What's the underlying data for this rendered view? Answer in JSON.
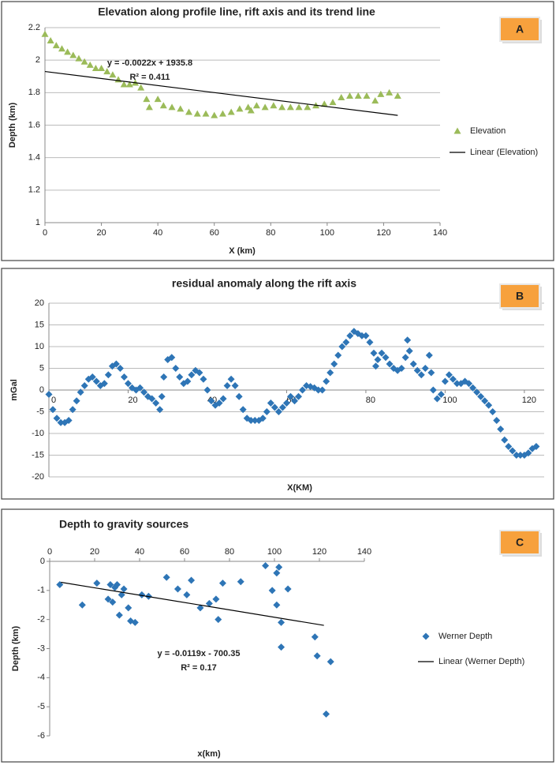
{
  "chart_data": [
    {
      "type": "scatter",
      "title": "Elevation along profile line, rift axis and its trend line",
      "panel_label": "A",
      "x_label": "X (km)",
      "y_label": "Depth (km)",
      "annotations": [
        "y = -0.0022x + 1935.8",
        "R² = 0.411"
      ],
      "xlim": [
        0,
        140
      ],
      "xticks": [
        0,
        20,
        40,
        60,
        80,
        100,
        120,
        140
      ],
      "ylim": [
        1,
        2.2
      ],
      "yticks": [
        1,
        1.2,
        1.4,
        1.6,
        1.8,
        2,
        2.2
      ],
      "grid": true,
      "x_axis_position": "bottom",
      "series": [
        {
          "name": "Elevation",
          "color": "#9bbb59",
          "marker": "triangle",
          "x": [
            0,
            2,
            4,
            6,
            8,
            10,
            12,
            14,
            16,
            18,
            20,
            22,
            24,
            26,
            28,
            30,
            32,
            34,
            36,
            37,
            40,
            42,
            45,
            48,
            51,
            54,
            57,
            60,
            63,
            66,
            69,
            72,
            73,
            75,
            78,
            81,
            84,
            87,
            90,
            93,
            96,
            99,
            102,
            105,
            108,
            111,
            114,
            117,
            119,
            122,
            125
          ],
          "values": [
            2.16,
            2.12,
            2.09,
            2.07,
            2.05,
            2.03,
            2.01,
            1.99,
            1.97,
            1.95,
            1.95,
            1.93,
            1.91,
            1.88,
            1.85,
            1.85,
            1.86,
            1.83,
            1.76,
            1.71,
            1.76,
            1.72,
            1.71,
            1.7,
            1.68,
            1.67,
            1.67,
            1.66,
            1.67,
            1.68,
            1.7,
            1.71,
            1.69,
            1.72,
            1.71,
            1.72,
            1.71,
            1.71,
            1.71,
            1.71,
            1.72,
            1.73,
            1.74,
            1.77,
            1.78,
            1.78,
            1.78,
            1.75,
            1.79,
            1.8,
            1.78
          ]
        },
        {
          "name": "Linear (Elevation)",
          "color": "#000000",
          "marker": "line",
          "x": [
            0,
            125
          ],
          "values": [
            1.93,
            1.66
          ]
        }
      ]
    },
    {
      "type": "scatter",
      "title": "residual anomaly  along the rift axis",
      "panel_label": "B",
      "x_label": "X(KM)",
      "y_label": "mGal",
      "xlim": [
        0,
        125
      ],
      "xticks": [
        0,
        20,
        40,
        60,
        80,
        100,
        120
      ],
      "ylim": [
        -20,
        20
      ],
      "yticks": [
        -20,
        -15,
        -10,
        -5,
        0,
        5,
        10,
        15,
        20
      ],
      "grid": true,
      "x_axis_position": "zero",
      "series": [
        {
          "name": null,
          "color": "#2e75b6",
          "marker": "diamond",
          "x": [
            0,
            1,
            2,
            3,
            4,
            5,
            6,
            7,
            8,
            9,
            10,
            11,
            12,
            13,
            14,
            15,
            16,
            17,
            18,
            19,
            20,
            21,
            22,
            23,
            24,
            25,
            26,
            27,
            28,
            28.5,
            29,
            30,
            31,
            32,
            33,
            34,
            35,
            36,
            37,
            38,
            39,
            40,
            41,
            42,
            43,
            44,
            45,
            46,
            47,
            48,
            49,
            50,
            51,
            52,
            53,
            54,
            55,
            56,
            57,
            58,
            59,
            60,
            61,
            62,
            63,
            64,
            65,
            66,
            67,
            68,
            69,
            70,
            71,
            72,
            73,
            74,
            75,
            76,
            77,
            78,
            79,
            80,
            81,
            82,
            82.5,
            83,
            84,
            85,
            86,
            87,
            88,
            89,
            90,
            90.5,
            91,
            92,
            93,
            94,
            95,
            96,
            96.5,
            97,
            98,
            99,
            100,
            101,
            102,
            103,
            104,
            105,
            106,
            107,
            108,
            109,
            110,
            111,
            112,
            113,
            114,
            115,
            116,
            117,
            118,
            119,
            120,
            121,
            122,
            123
          ],
          "values": [
            -1,
            -4.5,
            -6.5,
            -7.5,
            -7.5,
            -7,
            -4.5,
            -2.5,
            -0.5,
            1,
            2.5,
            3,
            2,
            1,
            1.5,
            3.5,
            5.5,
            6,
            5,
            3,
            1.5,
            0.5,
            0,
            0.5,
            -0.5,
            -1.5,
            -2,
            -3,
            -4.5,
            -1.5,
            3,
            7,
            7.5,
            5,
            3,
            1.5,
            2,
            3.5,
            4.5,
            4,
            2.5,
            0,
            -2.5,
            -3.5,
            -3,
            -2,
            1,
            2.5,
            1,
            -1.5,
            -4.5,
            -6.5,
            -7,
            -7,
            -7,
            -6.5,
            -5,
            -3,
            -4,
            -5,
            -4,
            -3,
            -1.5,
            -2.5,
            -1.5,
            0,
            1,
            0.8,
            0.5,
            0,
            0,
            2,
            4,
            6,
            8,
            10,
            11,
            12.5,
            13.5,
            13,
            12.5,
            12.5,
            11,
            8.5,
            5.5,
            7,
            8.5,
            7.5,
            6,
            5,
            4.5,
            5,
            7.5,
            11.5,
            9,
            6,
            4.5,
            3.5,
            5,
            8,
            4,
            0,
            -2,
            -1,
            2,
            3.5,
            2.5,
            1.5,
            1.5,
            2,
            1.5,
            0.5,
            -0.5,
            -1.5,
            -2.5,
            -3.5,
            -5,
            -7,
            -9,
            -11.5,
            -13,
            -14,
            -15,
            -15,
            -15,
            -14.5,
            -13.5,
            -13
          ]
        }
      ]
    },
    {
      "type": "scatter",
      "title": "Depth to gravity sources",
      "panel_label": "C",
      "x_label": "x(km)",
      "y_label": "Depth (km)",
      "annotations": [
        "y = -0.0119x - 700.35",
        "R² = 0.17"
      ],
      "xlim": [
        0,
        140
      ],
      "xticks": [
        0,
        20,
        40,
        60,
        80,
        100,
        120,
        140
      ],
      "ylim": [
        -6,
        0
      ],
      "yticks": [
        -6,
        -5,
        -4,
        -3,
        -2,
        -1,
        0
      ],
      "grid": false,
      "x_axis_position": "top",
      "series": [
        {
          "name": "Werner Depth",
          "color": "#2e75b6",
          "marker": "diamond",
          "x": [
            4.5,
            14.5,
            21,
            26,
            27,
            28,
            29,
            30,
            31,
            32,
            33,
            35,
            36,
            38,
            41,
            44,
            52,
            57,
            61,
            63,
            67,
            71,
            74,
            75,
            77,
            85,
            96,
            99,
            101,
            102,
            101,
            103,
            103,
            106,
            118,
            119,
            123,
            125
          ],
          "values": [
            -0.8,
            -1.5,
            -0.75,
            -1.3,
            -0.8,
            -1.4,
            -0.9,
            -0.8,
            -1.85,
            -1.15,
            -0.95,
            -1.6,
            -2.05,
            -2.1,
            -1.15,
            -1.2,
            -0.55,
            -0.95,
            -1.15,
            -0.65,
            -1.6,
            -1.45,
            -1.3,
            -2,
            -0.75,
            -0.7,
            -0.15,
            -1,
            -0.4,
            -0.2,
            -1.5,
            -2.1,
            -2.95,
            -0.95,
            -2.6,
            -3.25,
            -5.25,
            -3.45
          ]
        },
        {
          "name": "Linear (Werner Depth)",
          "color": "#000000",
          "marker": "line",
          "x": [
            5,
            122
          ],
          "values": [
            -0.72,
            -2.2
          ]
        }
      ]
    }
  ]
}
